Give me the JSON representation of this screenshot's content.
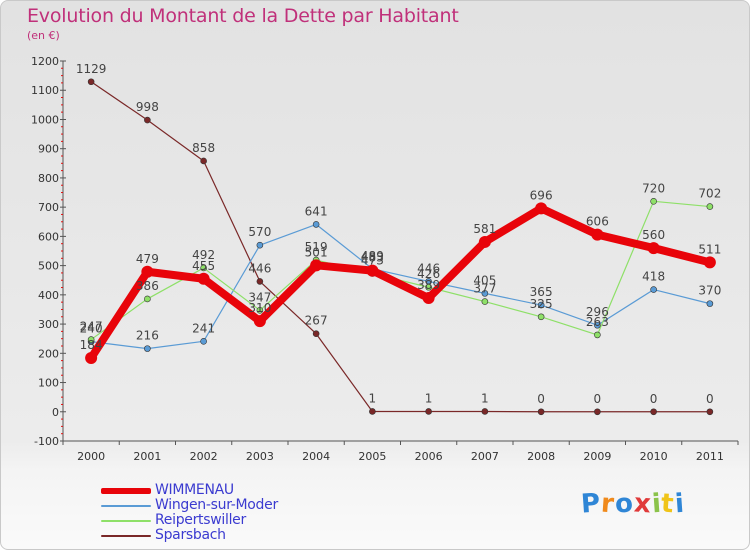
{
  "title": "Evolution du Montant de la Dette par Habitant",
  "subtitle": "(en €)",
  "logo_text": "Proxiti",
  "chart_data": {
    "type": "line",
    "title": "Evolution du Montant de la Dette par Habitant",
    "subtitle": "(en €)",
    "xlabel": "",
    "ylabel": "",
    "x": [
      "2000",
      "2001",
      "2002",
      "2003",
      "2004",
      "2005",
      "2006",
      "2007",
      "2008",
      "2009",
      "2010",
      "2011"
    ],
    "ylim": [
      -100,
      1200
    ],
    "yticks": [
      -100,
      0,
      100,
      200,
      300,
      400,
      500,
      600,
      700,
      800,
      900,
      1000,
      1100,
      1200
    ],
    "grid": false,
    "legend_position": "bottom-left",
    "series": [
      {
        "name": "WIMMENAU",
        "color": "#e8040a",
        "values": [
          184,
          479,
          455,
          310,
          501,
          483,
          389,
          581,
          696,
          606,
          560,
          511
        ],
        "labels": [
          "184",
          "479",
          "455",
          "310",
          "501",
          "483",
          "389",
          "581",
          "696",
          "606",
          "560",
          "511"
        ]
      },
      {
        "name": "Wingen-sur-Moder",
        "color": "#5a9bd5",
        "values": [
          240,
          216,
          241,
          570,
          641,
          489,
          446,
          405,
          365,
          296,
          418,
          370
        ],
        "labels": [
          "240",
          "216",
          "241",
          "570",
          "641",
          "489",
          "446",
          "405",
          "365",
          "296",
          "418",
          "370"
        ]
      },
      {
        "name": "Reipertswiller",
        "color": "#8ee068",
        "values": [
          247,
          386,
          492,
          347,
          519,
          473,
          426,
          377,
          325,
          263,
          720,
          702
        ],
        "labels": [
          "247",
          "386",
          "492",
          "347",
          "519",
          "473",
          "426",
          "377",
          "325",
          "263",
          "720",
          "702"
        ]
      },
      {
        "name": "Sparsbach",
        "color": "#7a2828",
        "values": [
          1129,
          998,
          858,
          446,
          267,
          1,
          1,
          1,
          0,
          0,
          0,
          0
        ],
        "labels": [
          "1129",
          "998",
          "858",
          "446",
          "267",
          "1",
          "1",
          "1",
          "0",
          "0",
          "0",
          "0"
        ]
      }
    ]
  }
}
